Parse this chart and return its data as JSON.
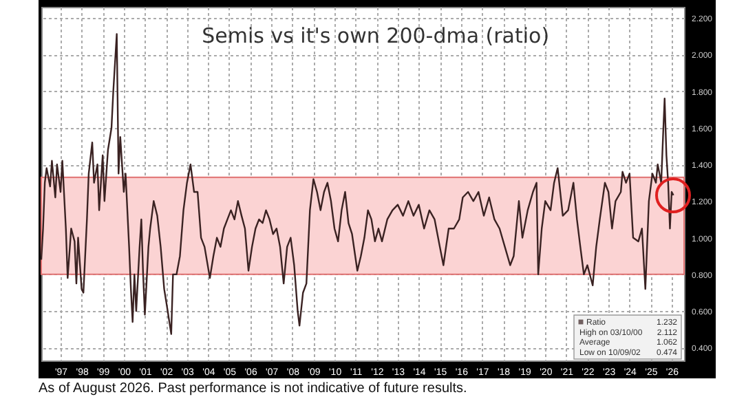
{
  "chart_data": {
    "type": "line",
    "title": "Semis vs it's own 200-dma (ratio)",
    "x": [
      "1996-08",
      "1996-09",
      "1996-10",
      "1996-11",
      "1997-01",
      "1997-02",
      "1997-04",
      "1997-05",
      "1997-07",
      "1997-08",
      "1997-10",
      "1997-11",
      "1998-01",
      "1998-03",
      "1998-04",
      "1998-05",
      "1998-07",
      "1998-08",
      "1998-10",
      "1998-11",
      "1999-01",
      "1999-02",
      "1999-04",
      "1999-05",
      "1999-07",
      "1999-08",
      "1999-10",
      "1999-12",
      "2000-01",
      "2000-03",
      "2000-04",
      "2000-05",
      "2000-07",
      "2000-08",
      "2000-10",
      "2000-11",
      "2000-12",
      "2001-01",
      "2001-02",
      "2001-04",
      "2001-05",
      "2001-06",
      "2001-07",
      "2001-09",
      "2001-10",
      "2001-12",
      "2002-02",
      "2002-04",
      "2002-06",
      "2002-08",
      "2002-10",
      "2002-11",
      "2003-01",
      "2003-03",
      "2003-05",
      "2003-07",
      "2003-09",
      "2003-11",
      "2004-01",
      "2004-03",
      "2004-05",
      "2004-08",
      "2004-10",
      "2004-12",
      "2005-02",
      "2005-04",
      "2005-06",
      "2005-08",
      "2005-10",
      "2005-12",
      "2006-02",
      "2006-04",
      "2006-06",
      "2006-08",
      "2006-10",
      "2006-12",
      "2007-02",
      "2007-04",
      "2007-06",
      "2007-08",
      "2007-10",
      "2007-12",
      "2008-02",
      "2008-04",
      "2008-06",
      "2008-08",
      "2008-10",
      "2008-11",
      "2009-01",
      "2009-03",
      "2009-05",
      "2009-07",
      "2009-09",
      "2009-11",
      "2010-01",
      "2010-03",
      "2010-05",
      "2010-07",
      "2010-09",
      "2010-11",
      "2011-01",
      "2011-03",
      "2011-05",
      "2011-08",
      "2011-10",
      "2011-12",
      "2012-02",
      "2012-04",
      "2012-06",
      "2012-08",
      "2012-10",
      "2013-01",
      "2013-04",
      "2013-07",
      "2013-10",
      "2014-01",
      "2014-04",
      "2014-07",
      "2014-10",
      "2015-01",
      "2015-04",
      "2015-07",
      "2015-09",
      "2015-12",
      "2016-03",
      "2016-06",
      "2016-08",
      "2016-11",
      "2017-02",
      "2017-05",
      "2017-08",
      "2017-11",
      "2018-02",
      "2018-05",
      "2018-08",
      "2018-11",
      "2019-01",
      "2019-04",
      "2019-06",
      "2019-09",
      "2019-12",
      "2020-02",
      "2020-03",
      "2020-05",
      "2020-07",
      "2020-10",
      "2020-12",
      "2021-02",
      "2021-05",
      "2021-08",
      "2021-11",
      "2022-01",
      "2022-03",
      "2022-05",
      "2022-07",
      "2022-10",
      "2022-12",
      "2023-02",
      "2023-05",
      "2023-07",
      "2023-09",
      "2023-11",
      "2024-02",
      "2024-03",
      "2024-05",
      "2024-07",
      "2024-09",
      "2024-12",
      "2025-02",
      "2025-04",
      "2025-06",
      "2025-08",
      "2025-10",
      "2025-11",
      "2026-01",
      "2026-02",
      "2026-03",
      "2026-04",
      "2026-05",
      "2026-06",
      "2026-07",
      "2026-08"
    ],
    "series": [
      {
        "name": "Ratio",
        "color": "#3a2222",
        "values": [
          0.88,
          1.05,
          1.3,
          1.38,
          1.28,
          1.42,
          1.22,
          1.4,
          1.25,
          1.42,
          1.05,
          0.78,
          1.05,
          0.98,
          0.75,
          1.0,
          0.72,
          0.7,
          1.1,
          1.35,
          1.52,
          1.3,
          1.4,
          1.15,
          1.45,
          1.2,
          1.48,
          1.6,
          1.8,
          2.112,
          1.35,
          1.55,
          1.25,
          1.35,
          0.95,
          0.72,
          0.54,
          0.8,
          0.6,
          0.95,
          1.1,
          0.8,
          0.58,
          0.95,
          1.05,
          1.2,
          1.12,
          0.95,
          0.72,
          0.6,
          0.474,
          0.8,
          0.8,
          0.9,
          1.15,
          1.3,
          1.4,
          1.25,
          1.25,
          1.0,
          0.95,
          0.78,
          0.9,
          1.0,
          0.95,
          1.05,
          1.1,
          1.15,
          1.1,
          1.2,
          1.12,
          1.05,
          0.82,
          0.95,
          1.05,
          1.1,
          1.08,
          1.15,
          1.1,
          1.02,
          1.05,
          0.95,
          0.75,
          0.95,
          1.0,
          0.85,
          0.6,
          0.52,
          0.7,
          0.75,
          1.15,
          1.32,
          1.25,
          1.15,
          1.25,
          1.3,
          1.2,
          1.05,
          0.98,
          1.15,
          1.25,
          1.08,
          1.02,
          0.82,
          0.9,
          1.0,
          1.15,
          1.1,
          0.98,
          1.05,
          0.98,
          1.1,
          1.15,
          1.18,
          1.12,
          1.2,
          1.12,
          1.18,
          1.05,
          1.15,
          1.1,
          0.95,
          0.85,
          1.05,
          1.05,
          1.1,
          1.22,
          1.25,
          1.2,
          1.25,
          1.12,
          1.22,
          1.1,
          1.05,
          0.95,
          0.85,
          0.9,
          1.2,
          1.0,
          1.15,
          1.25,
          1.3,
          0.8,
          1.05,
          1.2,
          1.15,
          1.3,
          1.38,
          1.12,
          1.15,
          1.3,
          1.1,
          0.95,
          0.8,
          0.85,
          0.74,
          0.95,
          1.1,
          1.3,
          1.25,
          1.05,
          1.2,
          1.25,
          1.36,
          1.3,
          1.35,
          1.0,
          0.98,
          1.05,
          0.72,
          1.2,
          1.35,
          1.3,
          1.4,
          1.3,
          1.55,
          1.76,
          1.45,
          1.3,
          1.05,
          1.25,
          1.232
        ]
      }
    ],
    "xlim": [
      "1996-08",
      "2027-02"
    ],
    "xticks": [
      {
        "value": "1997-07",
        "label": "'97"
      },
      {
        "value": "1998-07",
        "label": "'98"
      },
      {
        "value": "1999-07",
        "label": "'99"
      },
      {
        "value": "2000-07",
        "label": "'00"
      },
      {
        "value": "2001-07",
        "label": "'01"
      },
      {
        "value": "2002-07",
        "label": "'02"
      },
      {
        "value": "2003-07",
        "label": "'03"
      },
      {
        "value": "2004-07",
        "label": "'04"
      },
      {
        "value": "2005-07",
        "label": "'05"
      },
      {
        "value": "2006-07",
        "label": "'06"
      },
      {
        "value": "2007-07",
        "label": "'07"
      },
      {
        "value": "2008-07",
        "label": "'08"
      },
      {
        "value": "2009-07",
        "label": "'09"
      },
      {
        "value": "2010-07",
        "label": "'10"
      },
      {
        "value": "2011-07",
        "label": "'11"
      },
      {
        "value": "2012-07",
        "label": "'12"
      },
      {
        "value": "2013-07",
        "label": "'13"
      },
      {
        "value": "2014-07",
        "label": "'14"
      },
      {
        "value": "2015-07",
        "label": "'15"
      },
      {
        "value": "2016-07",
        "label": "'16"
      },
      {
        "value": "2017-07",
        "label": "'17"
      },
      {
        "value": "2018-07",
        "label": "'18"
      },
      {
        "value": "2019-07",
        "label": "'19"
      },
      {
        "value": "2020-07",
        "label": "'20"
      },
      {
        "value": "2021-07",
        "label": "'21"
      },
      {
        "value": "2022-07",
        "label": "'22"
      },
      {
        "value": "2023-07",
        "label": "'23"
      },
      {
        "value": "2024-07",
        "label": "'24"
      },
      {
        "value": "2025-07",
        "label": "'25"
      },
      {
        "value": "2026-07",
        "label": "'26"
      }
    ],
    "ylim": [
      0.33,
      2.26
    ],
    "yticks": [
      {
        "value": 0.4,
        "label": "0.400"
      },
      {
        "value": 0.6,
        "label": "0.600"
      },
      {
        "value": 0.8,
        "label": "0.800"
      },
      {
        "value": 1.0,
        "label": "1.000"
      },
      {
        "value": 1.2,
        "label": "1.200"
      },
      {
        "value": 1.4,
        "label": "1.400"
      },
      {
        "value": 1.6,
        "label": "1.600"
      },
      {
        "value": 1.8,
        "label": "1.800"
      },
      {
        "value": 2.0,
        "label": "2.000"
      },
      {
        "value": 2.2,
        "label": "2.200"
      }
    ],
    "bands": [
      {
        "axis": "y",
        "from": 0.8,
        "to": 1.33,
        "color": "#fbd3d3"
      }
    ],
    "grid": true,
    "legend": "bottom right",
    "annotations": [
      "1.232",
      "High on 03/10/00",
      "2.112",
      "Average",
      "1.062",
      "Low on 10/09/02",
      "0.474",
      "As of August 2026. Past performance is not indicative of future results."
    ]
  }
}
